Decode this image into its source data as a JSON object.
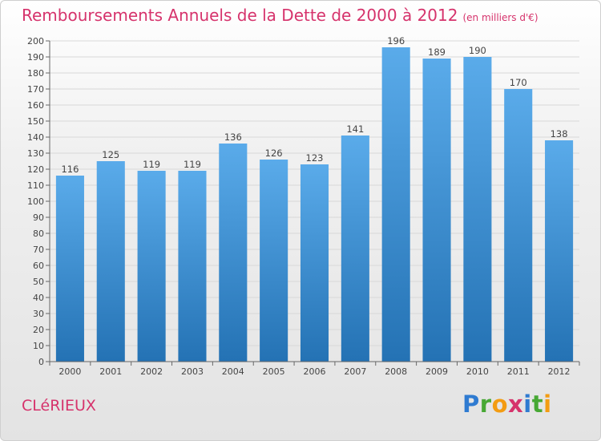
{
  "title": "Remboursements Annuels de la Dette de 2000 à 2012",
  "unit": "(en milliers d'€)",
  "commune": "CLéRIEUX",
  "brand": {
    "letters": [
      "P",
      "r",
      "o",
      "x",
      "i",
      "t",
      "i"
    ],
    "colors": [
      "#2f7bd1",
      "#47a834",
      "#f39c12",
      "#d6336c",
      "#2f7bd1",
      "#47a834",
      "#f39c12"
    ]
  },
  "colors": {
    "bar_top": "#5aabea",
    "bar_bottom": "#2472b4",
    "title": "#d6336c"
  },
  "chart_data": {
    "type": "bar",
    "categories": [
      "2000",
      "2001",
      "2002",
      "2003",
      "2004",
      "2005",
      "2006",
      "2007",
      "2008",
      "2009",
      "2010",
      "2011",
      "2012"
    ],
    "values": [
      116,
      125,
      119,
      119,
      136,
      126,
      123,
      141,
      196,
      189,
      190,
      170,
      138
    ],
    "ylim": [
      0,
      200
    ],
    "ytick_step": 10,
    "grid": true,
    "title": "Remboursements Annuels de la Dette de 2000 à 2012",
    "xlabel": "",
    "ylabel": ""
  }
}
